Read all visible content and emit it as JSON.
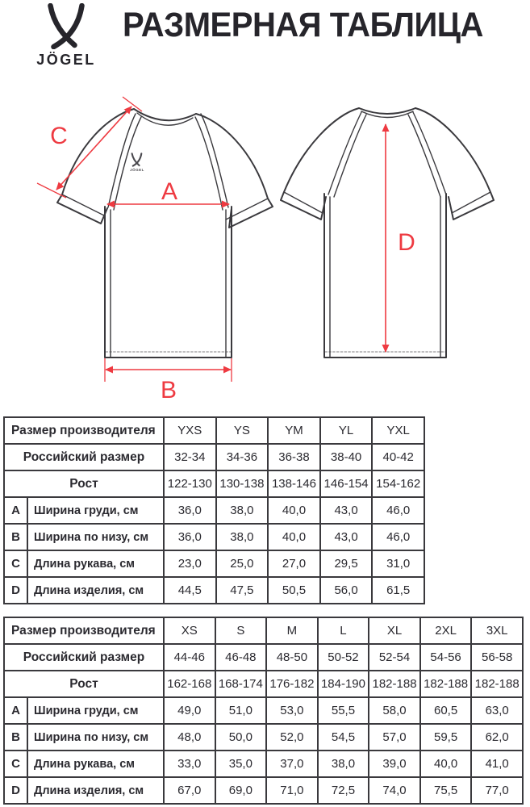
{
  "header": {
    "brand": "JÖGEL",
    "title": "РАЗМЕРНАЯ ТАБЛИЦА"
  },
  "diagram": {
    "labels": {
      "a": "A",
      "b": "B",
      "c": "C",
      "d": "D"
    },
    "shirt_logo": "JÖGEL"
  },
  "tables": [
    {
      "header_rows": [
        {
          "label": "Размер производителя",
          "values": [
            "YXS",
            "YS",
            "YM",
            "YL",
            "YXL"
          ]
        },
        {
          "label": "Российский размер",
          "values": [
            "32-34",
            "34-36",
            "36-38",
            "38-40",
            "40-42"
          ]
        },
        {
          "label": "Рост",
          "values": [
            "122-130",
            "130-138",
            "138-146",
            "146-154",
            "154-162"
          ]
        }
      ],
      "body_rows": [
        {
          "letter": "A",
          "label": "Ширина груди, см",
          "values": [
            "36,0",
            "38,0",
            "40,0",
            "43,0",
            "46,0"
          ]
        },
        {
          "letter": "B",
          "label": "Ширина по низу, см",
          "values": [
            "36,0",
            "38,0",
            "40,0",
            "43,0",
            "46,0"
          ]
        },
        {
          "letter": "C",
          "label": "Длина рукава, см",
          "values": [
            "23,0",
            "25,0",
            "27,0",
            "29,5",
            "31,0"
          ]
        },
        {
          "letter": "D",
          "label": "Длина изделия, см",
          "values": [
            "44,5",
            "47,5",
            "50,5",
            "56,0",
            "61,5"
          ]
        }
      ]
    },
    {
      "header_rows": [
        {
          "label": "Размер производителя",
          "values": [
            "XS",
            "S",
            "M",
            "L",
            "XL",
            "2XL",
            "3XL"
          ]
        },
        {
          "label": "Российский размер",
          "values": [
            "44-46",
            "46-48",
            "48-50",
            "50-52",
            "52-54",
            "54-56",
            "56-58"
          ]
        },
        {
          "label": "Рост",
          "values": [
            "162-168",
            "168-174",
            "176-182",
            "184-190",
            "182-188",
            "182-188",
            "182-188"
          ]
        }
      ],
      "body_rows": [
        {
          "letter": "A",
          "label": "Ширина груди, см",
          "values": [
            "49,0",
            "51,0",
            "53,0",
            "55,5",
            "58,0",
            "60,5",
            "63,0"
          ]
        },
        {
          "letter": "B",
          "label": "Ширина по низу, см",
          "values": [
            "48,0",
            "50,0",
            "52,0",
            "54,5",
            "57,0",
            "59,5",
            "62,0"
          ]
        },
        {
          "letter": "C",
          "label": "Длина рукава, см",
          "values": [
            "33,0",
            "35,0",
            "37,0",
            "38,0",
            "39,0",
            "40,0",
            "41,0"
          ]
        },
        {
          "letter": "D",
          "label": "Длина изделия, см",
          "values": [
            "67,0",
            "69,0",
            "71,0",
            "72,5",
            "74,0",
            "75,5",
            "77,0"
          ]
        }
      ]
    }
  ],
  "colors": {
    "accent_red": "#ee3a41",
    "ink": "#26252b",
    "table_border": "#3a393d"
  }
}
